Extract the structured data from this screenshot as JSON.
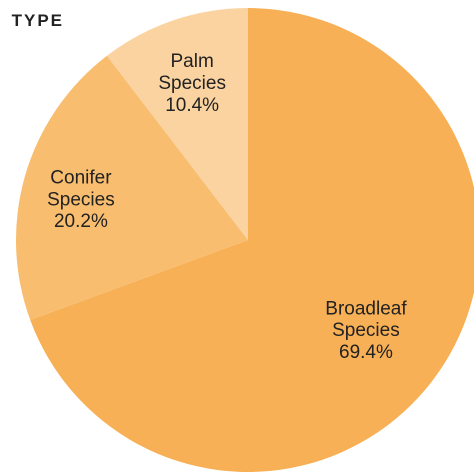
{
  "chart_data": {
    "type": "pie",
    "title": "TYPE",
    "categories": [
      "Broadleaf Species",
      "Conifer Species",
      "Palm Species"
    ],
    "values": [
      69.4,
      20.2,
      10.4
    ],
    "value_labels": [
      "69.4%",
      "20.2%",
      "10.4%"
    ],
    "colors": [
      "#f7b055",
      "#f8bd6f",
      "#fad3a0"
    ]
  }
}
